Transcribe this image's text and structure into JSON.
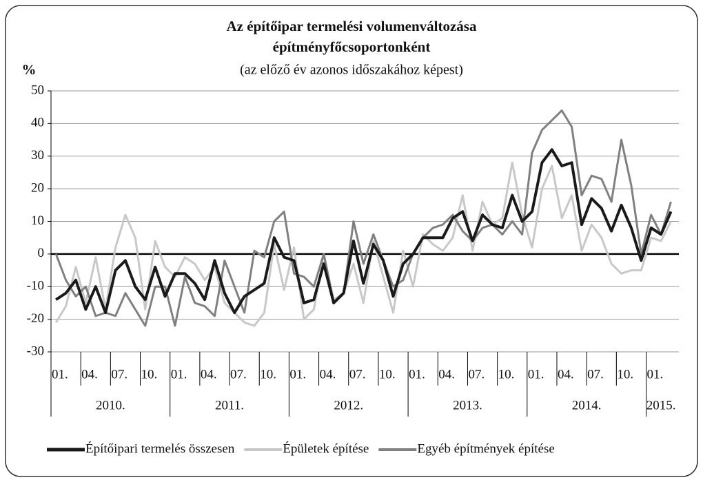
{
  "chart_data": {
    "type": "line",
    "title": "Az építőipar termelési volumenváltozása építményfőcsoportonként",
    "subtitle": "(az előző év azonos időszakához képest)",
    "y_label": "%",
    "categories": [
      "01.",
      null,
      null,
      "04.",
      null,
      null,
      "07.",
      null,
      null,
      "10.",
      null,
      null,
      "01.",
      null,
      null,
      "04.",
      null,
      null,
      "07.",
      null,
      null,
      "10.",
      null,
      null,
      "01.",
      null,
      null,
      "04.",
      null,
      null,
      "07.",
      null,
      null,
      "10.",
      null,
      null,
      "01.",
      null,
      null,
      "04.",
      null,
      null,
      "07.",
      null,
      null,
      "10.",
      null,
      null,
      "01.",
      null,
      null,
      "04.",
      null,
      null,
      "07.",
      null,
      null,
      "10.",
      null,
      null,
      "01.",
      null,
      null
    ],
    "years": [
      "2010.",
      "2011.",
      "2012.",
      "2013.",
      "2014.",
      "2015."
    ],
    "ylim": [
      -30,
      50
    ],
    "yticks": [
      -30,
      -20,
      -10,
      0,
      10,
      20,
      30,
      40,
      50
    ],
    "grid": true,
    "series": [
      {
        "name": "Építőipari termelés összesen",
        "color": "#1a1a1a",
        "width": 4,
        "values": [
          -14,
          -12,
          -8,
          -17,
          -10,
          -18,
          -5,
          -2,
          -10,
          -14,
          -4,
          -13,
          -6,
          -6,
          -9,
          -14,
          -2,
          -12,
          -18,
          -13,
          -11,
          -9,
          5,
          -1,
          -2,
          -15,
          -14,
          -3,
          -15,
          -12,
          4,
          -9,
          3,
          -2,
          -13,
          -3,
          0,
          5,
          5,
          5,
          11,
          13,
          4,
          12,
          9,
          8,
          18,
          10,
          13,
          28,
          32,
          27,
          28,
          9,
          17,
          14,
          7,
          15,
          8,
          -2,
          8,
          6,
          13
        ]
      },
      {
        "name": "Épületek építése",
        "color": "#c8c8c8",
        "width": 3,
        "values": [
          -21,
          -16,
          -4,
          -15,
          -1,
          -17,
          2,
          12,
          5,
          -17,
          4,
          -4,
          -7,
          -1,
          -3,
          -8,
          -4,
          -15,
          -18,
          -21,
          -22,
          -18,
          3,
          -11,
          2,
          -20,
          -17,
          0,
          -14,
          -12,
          -3,
          -15,
          4,
          -7,
          -18,
          1,
          -10,
          6,
          3,
          1,
          5,
          18,
          1,
          16,
          9,
          11,
          28,
          12,
          2,
          20,
          27,
          11,
          18,
          1,
          9,
          5,
          -3,
          -6,
          -5,
          -5,
          5,
          4,
          10
        ]
      },
      {
        "name": "Egyéb építmények építése",
        "color": "#808080",
        "width": 3,
        "values": [
          0,
          -8,
          -13,
          -10,
          -19,
          -18,
          -19,
          -12,
          -17,
          -22,
          -10,
          -10,
          -22,
          -7,
          -15,
          -16,
          -19,
          -2,
          -10,
          -18,
          1,
          -1,
          10,
          13,
          -6,
          -7,
          -10,
          0,
          -15,
          -12,
          10,
          -3,
          6,
          -2,
          -10,
          -8,
          0,
          5,
          8,
          9,
          12,
          7,
          4,
          8,
          9,
          6,
          10,
          6,
          31,
          38,
          41,
          44,
          39,
          18,
          24,
          23,
          16,
          35,
          21,
          0,
          12,
          6,
          16
        ]
      }
    ],
    "legend": "bottom"
  }
}
